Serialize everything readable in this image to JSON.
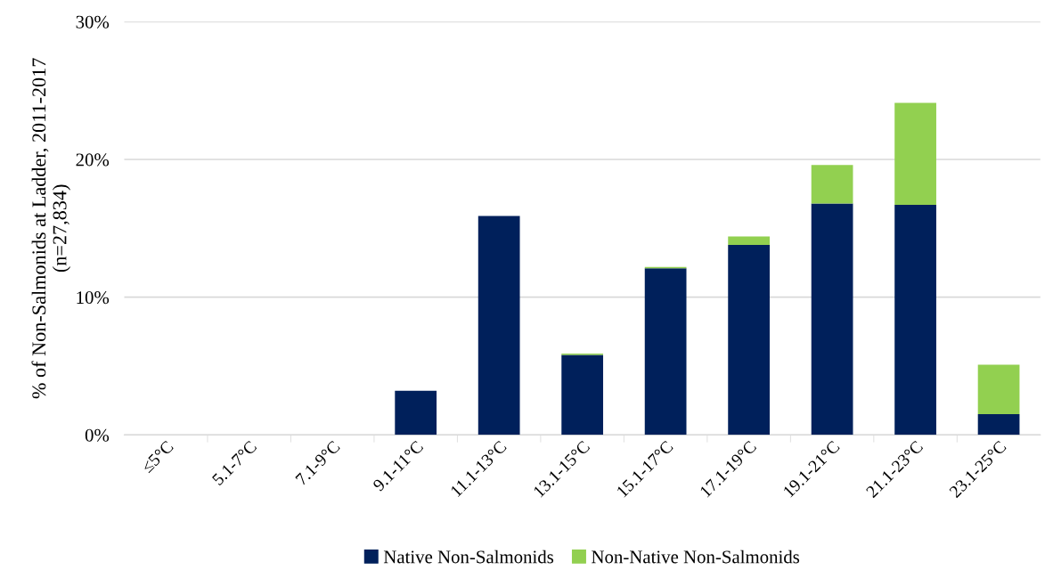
{
  "chart_data": {
    "type": "bar",
    "stacked": true,
    "ylabel": "% of Non-Salmonids at Ladder, 2011-2017\n(n=27,834)",
    "categories": [
      "≤5°C",
      "5.1-7°C",
      "7.1-9°C",
      "9.1-11°C",
      "11.1-13°C",
      "13.1-15°C",
      "15.1-17°C",
      "17.1-19°C",
      "19.1-21°C",
      "21.1-23°C",
      "23.1-25°C"
    ],
    "series": [
      {
        "name": "Native Non-Salmonids",
        "color": "#00205b",
        "values": [
          0,
          0,
          0,
          3.2,
          15.9,
          5.8,
          12.1,
          13.8,
          16.8,
          16.7,
          1.5
        ]
      },
      {
        "name": "Non-Native Non-Salmonids",
        "color": "#92d050",
        "values": [
          0,
          0,
          0,
          0,
          0,
          0.1,
          0.1,
          0.6,
          2.8,
          7.4,
          3.6
        ]
      }
    ],
    "ylim": [
      0,
      30
    ],
    "yticks": [
      {
        "value": 0,
        "label": "0%"
      },
      {
        "value": 10,
        "label": "10%"
      },
      {
        "value": 20,
        "label": "20%"
      },
      {
        "value": 30,
        "label": "30%"
      }
    ],
    "grid": "y",
    "legend": "bottom"
  }
}
